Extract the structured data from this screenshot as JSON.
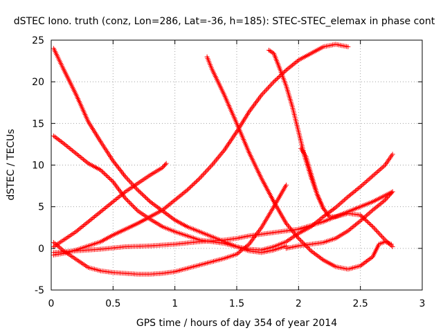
{
  "chart_data": {
    "type": "scatter",
    "title": "dSTEC Iono. truth (conz, Lon=286, Lat=-36, h=185): STEC-STEC_elemax in phase cont",
    "xlabel": "GPS time / hours of day 354 of year 2014",
    "ylabel": "dSTEC  / TECUs",
    "xlim": [
      0,
      3
    ],
    "ylim": [
      -5,
      25
    ],
    "xticks": [
      0,
      0.5,
      1,
      1.5,
      2,
      2.5,
      3
    ],
    "xtick_labels": [
      "0",
      "0.5",
      "1",
      "1.5",
      "2",
      "2.5",
      "3"
    ],
    "yticks": [
      -5,
      0,
      5,
      10,
      15,
      20,
      25
    ],
    "ytick_labels": [
      "-5",
      "0",
      "5",
      "10",
      "15",
      "20",
      "25"
    ],
    "grid": true,
    "marker": "+",
    "color": "#ff0000",
    "series": [
      {
        "x": [
          0.02,
          0.1,
          0.2,
          0.3,
          0.4,
          0.5,
          0.6,
          0.7,
          0.8,
          0.9,
          1.0,
          1.1,
          1.2,
          1.3,
          1.4,
          1.5,
          1.6,
          1.7,
          1.8,
          1.9
        ],
        "y": [
          24.0,
          21.5,
          18.5,
          15.2,
          12.8,
          10.5,
          8.6,
          7.0,
          5.6,
          4.5,
          3.4,
          2.6,
          2.0,
          1.4,
          0.8,
          0.2,
          -0.3,
          -0.5,
          -0.2,
          0.3
        ]
      },
      {
        "x": [
          0.02,
          0.1,
          0.2,
          0.3,
          0.4,
          0.5,
          0.6,
          0.7,
          0.8,
          0.9,
          1.0,
          1.1,
          1.2,
          1.3,
          1.4,
          1.5,
          1.6,
          1.7,
          1.8,
          1.9,
          2.0,
          2.1,
          2.2,
          2.3,
          2.4,
          2.5,
          2.6,
          2.7,
          2.76
        ],
        "y": [
          13.5,
          12.6,
          11.4,
          10.2,
          9.4,
          8.0,
          6.0,
          4.5,
          3.5,
          2.6,
          2.0,
          1.5,
          1.0,
          0.8,
          0.6,
          0.2,
          -0.1,
          -0.2,
          0.2,
          0.8,
          1.8,
          2.6,
          3.8,
          4.9,
          6.2,
          7.4,
          8.7,
          10.0,
          11.3
        ]
      },
      {
        "x": [
          0.02,
          0.1,
          0.2,
          0.3,
          0.4,
          0.5,
          0.6,
          0.7,
          0.8,
          0.9,
          0.93
        ],
        "y": [
          0.2,
          1.0,
          2.0,
          3.2,
          4.4,
          5.6,
          6.8,
          7.8,
          8.8,
          9.7,
          10.2
        ]
      },
      {
        "x": [
          0.02,
          0.1,
          0.2,
          0.3,
          0.4,
          0.5,
          0.6,
          0.7,
          0.8,
          0.9,
          1.0,
          1.1,
          1.2,
          1.3,
          1.4,
          1.5,
          1.6,
          1.7,
          1.8,
          1.9,
          2.0,
          2.1,
          2.2,
          2.3,
          2.4
        ],
        "y": [
          -0.8,
          -0.6,
          -0.2,
          0.3,
          0.8,
          1.6,
          2.3,
          3.0,
          3.8,
          4.6,
          5.8,
          7.0,
          8.4,
          10.0,
          11.8,
          14.0,
          16.4,
          18.4,
          20.0,
          21.4,
          22.6,
          23.4,
          24.2,
          24.5,
          24.2
        ]
      },
      {
        "x": [
          0.02,
          0.1,
          0.2,
          0.3,
          0.4,
          0.5,
          0.6,
          0.7,
          0.8,
          0.9,
          1.0,
          1.1,
          1.2,
          1.3,
          1.4,
          1.5,
          1.6,
          1.7,
          1.8,
          1.9
        ],
        "y": [
          0.7,
          -0.3,
          -1.3,
          -2.3,
          -2.7,
          -2.9,
          -3.0,
          -3.1,
          -3.1,
          -3.0,
          -2.8,
          -2.4,
          -2.0,
          -1.6,
          -1.2,
          -0.7,
          0.5,
          2.5,
          5.0,
          7.6
        ]
      },
      {
        "x": [
          1.26,
          1.3,
          1.4,
          1.5,
          1.6,
          1.7,
          1.8,
          1.9,
          2.0,
          2.1,
          2.2,
          2.3,
          2.4,
          2.5,
          2.6,
          2.65,
          2.7,
          2.75
        ],
        "y": [
          23.0,
          21.5,
          18.4,
          15.0,
          11.5,
          8.4,
          5.6,
          3.0,
          1.2,
          -0.3,
          -1.4,
          -2.2,
          -2.5,
          -2.1,
          -1.0,
          0.5,
          0.8,
          0.5
        ]
      },
      {
        "x": [
          1.76,
          1.8,
          1.85,
          1.9,
          1.95,
          2.0,
          2.05,
          2.1,
          2.15,
          2.2
        ],
        "y": [
          23.8,
          23.4,
          21.5,
          19.5,
          17.0,
          14.0,
          11.0,
          8.6,
          6.5,
          4.8
        ]
      },
      {
        "x": [
          2.02,
          2.06,
          2.1,
          2.15,
          2.2,
          2.25,
          2.3,
          2.4,
          2.5,
          2.6,
          2.7,
          2.76
        ],
        "y": [
          12.0,
          11.0,
          9.0,
          6.5,
          4.8,
          3.8,
          3.8,
          4.2,
          4.0,
          2.6,
          1.0,
          0.2
        ]
      },
      {
        "x": [
          0.02,
          0.2,
          0.4,
          0.6,
          0.8,
          1.0,
          1.2,
          1.4,
          1.5,
          1.6,
          1.8,
          2.0,
          2.2,
          2.4,
          2.6,
          2.76
        ],
        "y": [
          -0.5,
          -0.3,
          -0.1,
          0.2,
          0.3,
          0.5,
          0.8,
          1.0,
          1.2,
          1.5,
          1.9,
          2.3,
          3.2,
          4.4,
          5.6,
          6.8
        ]
      },
      {
        "x": [
          1.9,
          2.0,
          2.1,
          2.2,
          2.3,
          2.4,
          2.5,
          2.6,
          2.7,
          2.76
        ],
        "y": [
          0.0,
          0.3,
          0.5,
          0.7,
          1.2,
          2.1,
          3.3,
          4.6,
          5.8,
          6.8
        ]
      }
    ]
  }
}
